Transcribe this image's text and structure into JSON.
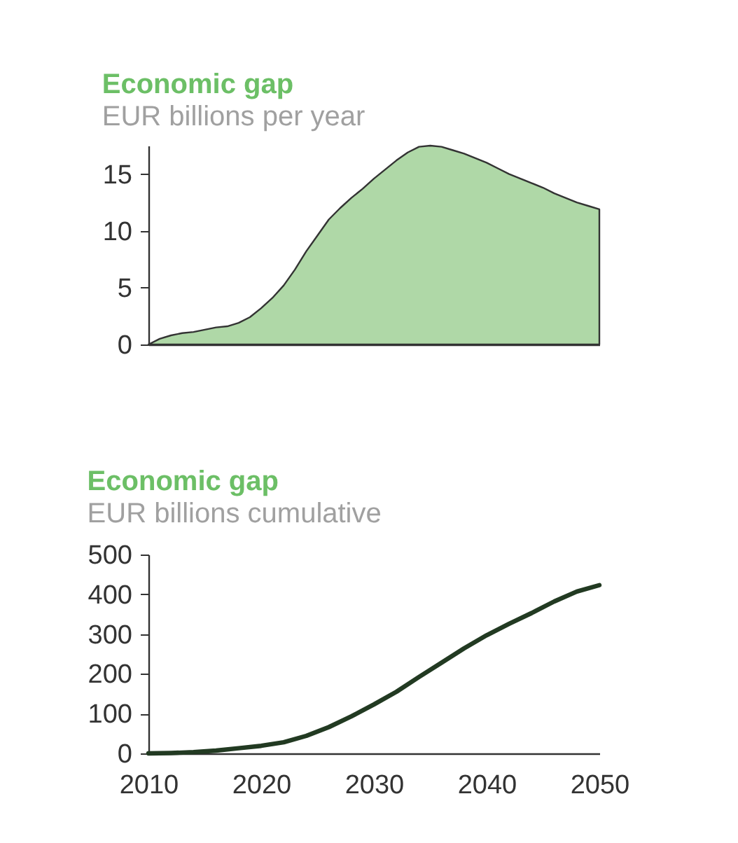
{
  "chart_data": [
    {
      "type": "area",
      "title": "Economic gap",
      "subtitle": "EUR billions per year",
      "x": [
        2010,
        2011,
        2012,
        2013,
        2014,
        2015,
        2016,
        2017,
        2018,
        2019,
        2020,
        2021,
        2022,
        2023,
        2024,
        2025,
        2026,
        2027,
        2028,
        2029,
        2030,
        2031,
        2032,
        2033,
        2034,
        2035,
        2036,
        2037,
        2038,
        2039,
        2040,
        2041,
        2042,
        2043,
        2044,
        2045,
        2046,
        2047,
        2048,
        2049,
        2050
      ],
      "series": [
        {
          "color": "#afd8a7",
          "values": [
            0,
            0.5,
            0.8,
            1.0,
            1.1,
            1.3,
            1.5,
            1.6,
            1.9,
            2.4,
            3.2,
            4.1,
            5.2,
            6.6,
            8.2,
            9.6,
            11.0,
            12.0,
            12.9,
            13.7,
            14.6,
            15.4,
            16.2,
            16.9,
            17.4,
            17.5,
            17.4,
            17.1,
            16.8,
            16.4,
            16.0,
            15.5,
            15.0,
            14.6,
            14.2,
            13.8,
            13.3,
            12.9,
            12.5,
            12.2,
            11.9
          ]
        }
      ],
      "xlim": [
        2010,
        2050
      ],
      "ylim": [
        0,
        17.5
      ],
      "yticks": [
        0,
        5,
        10,
        15
      ],
      "tick_labels": "y"
    },
    {
      "type": "line",
      "title": "Economic gap",
      "subtitle": "EUR billions cumulative",
      "x": [
        2010,
        2012,
        2014,
        2016,
        2018,
        2020,
        2022,
        2024,
        2026,
        2028,
        2030,
        2032,
        2034,
        2036,
        2038,
        2040,
        2042,
        2044,
        2046,
        2048,
        2050
      ],
      "series": [
        {
          "color": "#223a22",
          "values": [
            0,
            1,
            3,
            7,
            13,
            19,
            28,
            44,
            66,
            93,
            123,
            155,
            192,
            228,
            264,
            297,
            326,
            353,
            382,
            407,
            423
          ]
        }
      ],
      "xlim": [
        2010,
        2050
      ],
      "xticks": [
        2010,
        2020,
        2030,
        2040,
        2050
      ],
      "ylim": [
        0,
        500
      ],
      "yticks": [
        0,
        100,
        200,
        300,
        400,
        500
      ],
      "line_style": "solid"
    }
  ]
}
